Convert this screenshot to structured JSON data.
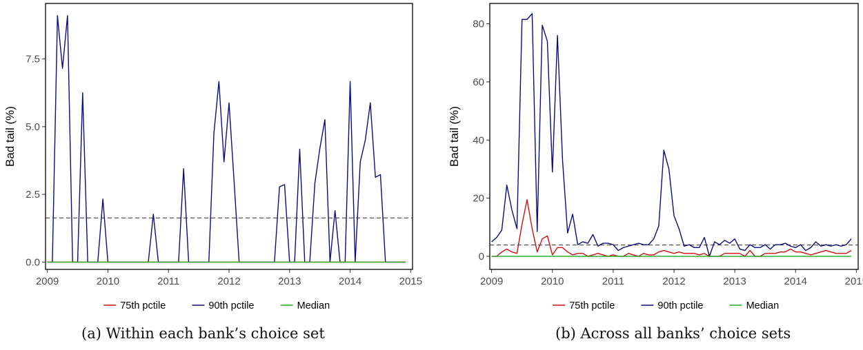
{
  "chart_data": [
    {
      "type": "line",
      "caption": "(a) Within each bank’s choice set",
      "ylabel": "Bad tail (%)",
      "xlim": [
        2008.97,
        2015.03
      ],
      "ylim": [
        -0.27,
        9.55
      ],
      "xticks": [
        "2009",
        "2010",
        "2011",
        "2012",
        "2013",
        "2014",
        "2015"
      ],
      "yticks": [
        "0.0",
        "2.5",
        "5.0",
        "7.5"
      ],
      "ytick_values": [
        0,
        2.5,
        5.0,
        7.5
      ],
      "reference_line": 1.63,
      "series": [
        {
          "name": "90th pctile",
          "color": "#0c0c7c",
          "x": [
            2009.0,
            2009.083,
            2009.167,
            2009.25,
            2009.333,
            2009.417,
            2009.5,
            2009.583,
            2009.667,
            2009.75,
            2009.833,
            2009.917,
            2010.0,
            2010.083,
            2010.167,
            2010.25,
            2010.333,
            2010.417,
            2010.5,
            2010.583,
            2010.667,
            2010.75,
            2010.833,
            2010.917,
            2011.0,
            2011.083,
            2011.167,
            2011.25,
            2011.333,
            2011.417,
            2011.5,
            2011.583,
            2011.667,
            2011.75,
            2011.833,
            2011.917,
            2012.0,
            2012.083,
            2012.167,
            2012.25,
            2012.333,
            2012.417,
            2012.5,
            2012.583,
            2012.667,
            2012.75,
            2012.833,
            2012.917,
            2013.0,
            2013.083,
            2013.167,
            2013.25,
            2013.333,
            2013.417,
            2013.5,
            2013.583,
            2013.667,
            2013.75,
            2013.833,
            2013.917,
            2014.0,
            2014.083,
            2014.167,
            2014.25,
            2014.333,
            2014.417,
            2014.5,
            2014.583,
            2014.667,
            2014.75,
            2014.833,
            2014.917
          ],
          "values": [
            0,
            0,
            9.1,
            7.15,
            9.1,
            0,
            0,
            6.25,
            0,
            0,
            0,
            2.33,
            0,
            0,
            0,
            0,
            0,
            0,
            0,
            0,
            0,
            1.77,
            0,
            0,
            0,
            0,
            0,
            3.45,
            0,
            0,
            0,
            0,
            0,
            4.75,
            6.67,
            3.7,
            5.88,
            3.0,
            0,
            0,
            0,
            0,
            0,
            0,
            0,
            0,
            2.78,
            2.86,
            0,
            0,
            4.17,
            0,
            0,
            2.9,
            4.2,
            5.26,
            0,
            1.9,
            0,
            0,
            6.67,
            0,
            3.7,
            4.5,
            5.88,
            3.13,
            3.23,
            0,
            0,
            0,
            0,
            0
          ]
        },
        {
          "name": "75th pctile",
          "color": "#cc1111",
          "x": [
            2009.0,
            2014.917
          ],
          "values": [
            0,
            0
          ]
        },
        {
          "name": "Median",
          "color": "#22aa22",
          "x": [
            2009.0,
            2014.917
          ],
          "values": [
            0,
            0
          ]
        }
      ],
      "legend": {
        "position": "bottom",
        "items": [
          {
            "label": "75th pctile",
            "color": "#cc1111"
          },
          {
            "label": "90th pctile",
            "color": "#0c0c7c"
          },
          {
            "label": "Median",
            "color": "#22aa22"
          }
        ]
      }
    },
    {
      "type": "line",
      "caption": "(b) Across all banks’ choice sets",
      "ylabel": "Bad tail (%)",
      "xlim": [
        2008.97,
        2015.03
      ],
      "ylim": [
        -4.5,
        87
      ],
      "xticks": [
        "2009",
        "2010",
        "2011",
        "2012",
        "2013",
        "2014",
        "2015"
      ],
      "yticks": [
        "0",
        "20",
        "40",
        "60",
        "80"
      ],
      "ytick_values": [
        0,
        20,
        40,
        60,
        80
      ],
      "reference_line": 3.9,
      "series": [
        {
          "name": "90th pctile",
          "color": "#0c0c7c",
          "x": [
            2009.0,
            2009.083,
            2009.167,
            2009.25,
            2009.333,
            2009.417,
            2009.5,
            2009.583,
            2009.667,
            2009.75,
            2009.833,
            2009.917,
            2010.0,
            2010.083,
            2010.167,
            2010.25,
            2010.333,
            2010.417,
            2010.5,
            2010.583,
            2010.667,
            2010.75,
            2010.833,
            2010.917,
            2011.0,
            2011.083,
            2011.167,
            2011.25,
            2011.333,
            2011.417,
            2011.5,
            2011.583,
            2011.667,
            2011.75,
            2011.833,
            2011.917,
            2012.0,
            2012.083,
            2012.167,
            2012.25,
            2012.333,
            2012.417,
            2012.5,
            2012.583,
            2012.667,
            2012.75,
            2012.833,
            2012.917,
            2013.0,
            2013.083,
            2013.167,
            2013.25,
            2013.333,
            2013.417,
            2013.5,
            2013.583,
            2013.667,
            2013.75,
            2013.833,
            2013.917,
            2014.0,
            2014.083,
            2014.167,
            2014.25,
            2014.333,
            2014.417,
            2014.5,
            2014.583,
            2014.667,
            2014.75,
            2014.833,
            2014.917
          ],
          "values": [
            5,
            6.5,
            9,
            24.5,
            16,
            9.5,
            81.5,
            81.5,
            83.5,
            8.5,
            79.5,
            74,
            29,
            76,
            33,
            8,
            14.5,
            4,
            5,
            4.5,
            7.5,
            3.5,
            4.5,
            4.5,
            4,
            2,
            3,
            3.5,
            4,
            4.5,
            4,
            4,
            6,
            10.5,
            36.5,
            30,
            14,
            9.5,
            3.5,
            4,
            3,
            3,
            6.5,
            0,
            5,
            4,
            5.5,
            4.5,
            6,
            2.5,
            2,
            4,
            3,
            3,
            4,
            2.5,
            4,
            4,
            4.5,
            3.5,
            3,
            4,
            2,
            3,
            5,
            3.5,
            4,
            3.5,
            4,
            3.5,
            4,
            6
          ]
        },
        {
          "name": "75th pctile",
          "color": "#cc1111",
          "x": [
            2009.0,
            2009.083,
            2009.167,
            2009.25,
            2009.333,
            2009.417,
            2009.5,
            2009.583,
            2009.667,
            2009.75,
            2009.833,
            2009.917,
            2010.0,
            2010.083,
            2010.167,
            2010.25,
            2010.333,
            2010.417,
            2010.5,
            2010.583,
            2010.667,
            2010.75,
            2010.833,
            2010.917,
            2011.0,
            2011.083,
            2011.167,
            2011.25,
            2011.333,
            2011.417,
            2011.5,
            2011.583,
            2011.667,
            2011.75,
            2011.833,
            2011.917,
            2012.0,
            2012.083,
            2012.167,
            2012.25,
            2012.333,
            2012.417,
            2012.5,
            2012.583,
            2012.667,
            2012.75,
            2012.833,
            2012.917,
            2013.0,
            2013.083,
            2013.167,
            2013.25,
            2013.333,
            2013.417,
            2013.5,
            2013.583,
            2013.667,
            2013.75,
            2013.833,
            2013.917,
            2014.0,
            2014.083,
            2014.167,
            2014.25,
            2014.333,
            2014.417,
            2014.5,
            2014.583,
            2014.667,
            2014.75,
            2014.833,
            2014.917
          ],
          "values": [
            0,
            0,
            1.5,
            2.5,
            1.5,
            1,
            11,
            19.5,
            9.5,
            1.5,
            6,
            7,
            0.5,
            3,
            3,
            1.5,
            0.5,
            1,
            1,
            0,
            0.5,
            1,
            0.5,
            0,
            0.5,
            0,
            0,
            1,
            0.5,
            0,
            1,
            0.5,
            0.5,
            1.5,
            2,
            1.5,
            1,
            1.5,
            1,
            1,
            1,
            0.5,
            1,
            0,
            0,
            0,
            1,
            1,
            1,
            1,
            0,
            2,
            0,
            0,
            1,
            1,
            1,
            1.5,
            1.5,
            2.5,
            1.5,
            1.5,
            1,
            0.5,
            1,
            1.5,
            2,
            1.5,
            1,
            1,
            1,
            2
          ]
        },
        {
          "name": "Median",
          "color": "#22aa22",
          "x": [
            2009.0,
            2014.917
          ],
          "values": [
            0,
            0
          ]
        }
      ],
      "legend": {
        "position": "bottom",
        "items": [
          {
            "label": "75th pctile",
            "color": "#cc1111"
          },
          {
            "label": "90th pctile",
            "color": "#0c0c7c"
          },
          {
            "label": "Median",
            "color": "#22aa22"
          }
        ]
      }
    }
  ]
}
